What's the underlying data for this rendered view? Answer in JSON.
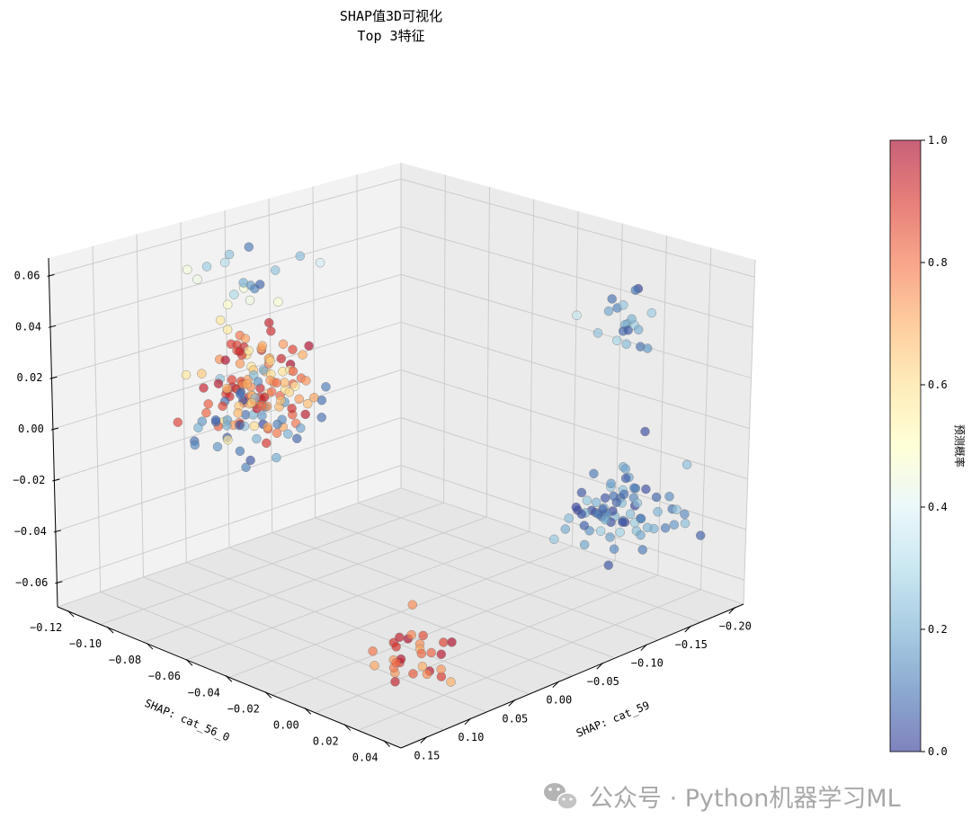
{
  "chart_data": {
    "type": "scatter3d",
    "title_line1": "SHAP值3D可视化",
    "title_line2": "Top 3特征",
    "xlabel": "SHAP: cat_56_0",
    "ylabel": "SHAP: cat_59",
    "zlabel": "",
    "x_ticks": [
      "−0.12",
      "−0.10",
      "−0.08",
      "−0.06",
      "−0.04",
      "−0.02",
      "0.00",
      "0.02",
      "0.04"
    ],
    "y_ticks": [
      "0.15",
      "0.10",
      "0.05",
      "0.00",
      "−0.05",
      "−0.10",
      "−0.15",
      "−0.20"
    ],
    "z_ticks": [
      "0.06",
      "0.04",
      "0.02",
      "0.00",
      "−0.02",
      "−0.04",
      "−0.06"
    ],
    "colorbar": {
      "label": "预测概率",
      "colormap": "RdYlBu_r",
      "range": [
        0.0,
        1.0
      ],
      "ticks": [
        "1.0",
        "0.8",
        "0.6",
        "0.4",
        "0.2",
        "0.0"
      ]
    },
    "clusters": [
      {
        "x": -0.095,
        "y": 0.02,
        "z": 0.048,
        "spread": [
          0.01,
          0.02,
          0.006
        ],
        "n": 18,
        "prob_range": [
          0.0,
          0.55
        ]
      },
      {
        "x": -0.1,
        "y": 0.0,
        "z": 0.0,
        "spread": [
          0.012,
          0.03,
          0.01
        ],
        "n": 110,
        "prob_range": [
          0.55,
          1.0
        ]
      },
      {
        "x": -0.1,
        "y": 0.0,
        "z": -0.012,
        "spread": [
          0.012,
          0.03,
          0.006
        ],
        "n": 40,
        "prob_range": [
          0.0,
          0.25
        ]
      },
      {
        "x": 0.02,
        "y": -0.14,
        "z": 0.044,
        "spread": [
          0.008,
          0.02,
          0.006
        ],
        "n": 20,
        "prob_range": [
          0.0,
          0.35
        ]
      },
      {
        "x": 0.02,
        "y": -0.14,
        "z": -0.03,
        "spread": [
          0.012,
          0.025,
          0.008
        ],
        "n": 75,
        "prob_range": [
          0.0,
          0.3
        ]
      },
      {
        "x": 0.02,
        "y": 0.1,
        "z": -0.05,
        "spread": [
          0.008,
          0.02,
          0.008
        ],
        "n": 30,
        "prob_range": [
          0.7,
          1.0
        ]
      }
    ]
  },
  "watermark": {
    "icon": "wechat-icon",
    "text": "公众号 · Python机器学习ML"
  }
}
